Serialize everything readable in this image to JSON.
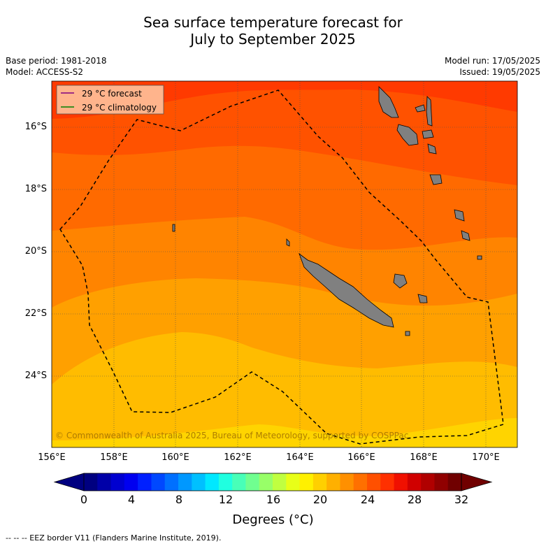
{
  "title_line1": "Sea surface temperature forecast for",
  "title_line2": "July to September 2025",
  "meta_left": [
    "Base period: 1981-2018",
    "Model: ACCESS-S2"
  ],
  "meta_right": [
    "Model run: 17/05/2025",
    "Issued: 19/05/2025"
  ],
  "legend": [
    {
      "label": "29 °C  forecast",
      "color": "#800080"
    },
    {
      "label": "29 °C  climatology",
      "color": "#008000"
    }
  ],
  "lat_labels": [
    "16°S",
    "18°S",
    "20°S",
    "22°S",
    "24°S"
  ],
  "lon_labels": [
    "156°E",
    "158°E",
    "160°E",
    "162°E",
    "164°E",
    "166°E",
    "168°E",
    "170°E"
  ],
  "copyright": "© Commonwealth of Australia 2025, Bureau of Meteorology, supported by COSPPac",
  "colorbar": {
    "ticks": [
      "0",
      "4",
      "8",
      "12",
      "16",
      "20",
      "24",
      "28",
      "32"
    ],
    "label": "Degrees (°C)",
    "colors": [
      "#000080",
      "#0000a8",
      "#0000d0",
      "#0000f0",
      "#0020ff",
      "#0048ff",
      "#0070ff",
      "#0098ff",
      "#00c0ff",
      "#00e8ff",
      "#20ffe0",
      "#48ffb8",
      "#70ff90",
      "#98ff68",
      "#c0ff40",
      "#e8ff18",
      "#fff000",
      "#ffd000",
      "#ffb000",
      "#ff9000",
      "#ff7000",
      "#ff5000",
      "#ff3000",
      "#f01000",
      "#d00000",
      "#b00000",
      "#900000",
      "#700000"
    ]
  },
  "sst_band_colors": [
    "#ff3a00",
    "#ff5200",
    "#ff6a00",
    "#ff8400",
    "#ffa000",
    "#ffbc00",
    "#ffd400",
    "#ffec00"
  ],
  "footer": "--  --  -- EEZ border V11 (Flanders Marine Institute, 2019)."
}
